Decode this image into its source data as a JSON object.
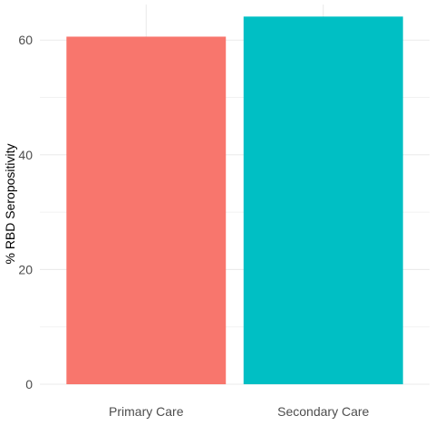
{
  "chart_data": {
    "type": "bar",
    "categories": [
      "Primary Care",
      "Secondary Care"
    ],
    "values": [
      60.6,
      64.1
    ],
    "colors": [
      "#F8766D",
      "#00BFC4"
    ],
    "ylabel": "% RBD Seropositivity",
    "xlabel": "",
    "ylim": [
      0,
      66.2
    ],
    "yticks": [
      0,
      20,
      40,
      60
    ],
    "grid": true,
    "legend": "none"
  }
}
